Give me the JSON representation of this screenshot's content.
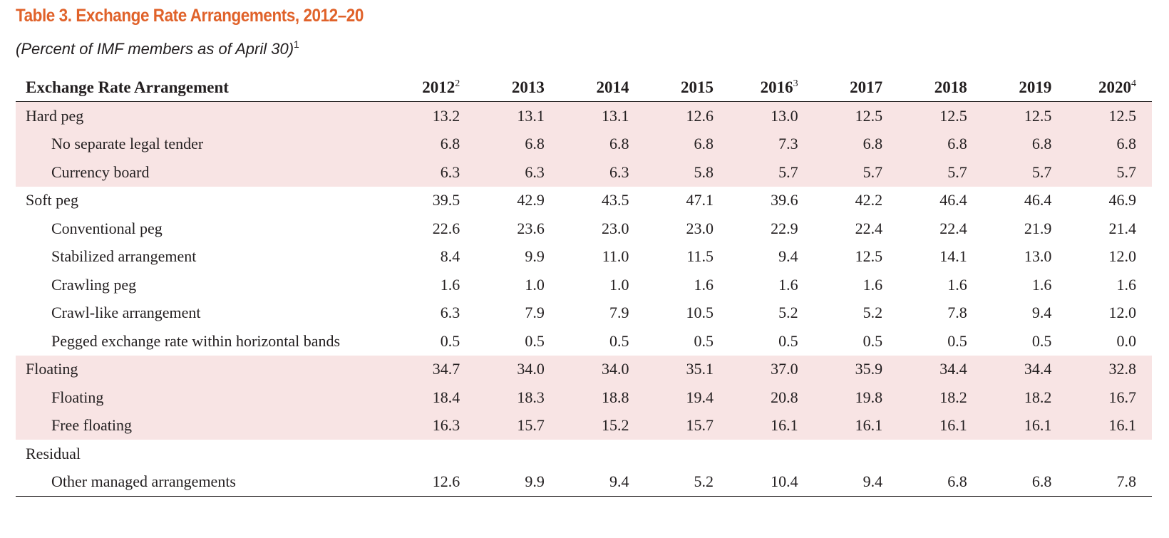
{
  "title": "Table 3.  Exchange Rate Arrangements, 2012–20",
  "subtitle": {
    "text": "(Percent of IMF members as of April 30)",
    "footnote": "1"
  },
  "header": {
    "label": "Exchange Rate Arrangement",
    "years": [
      {
        "year": "2012",
        "note": "2"
      },
      {
        "year": "2013",
        "note": ""
      },
      {
        "year": "2014",
        "note": ""
      },
      {
        "year": "2015",
        "note": ""
      },
      {
        "year": "2016",
        "note": "3"
      },
      {
        "year": "2017",
        "note": ""
      },
      {
        "year": "2018",
        "note": ""
      },
      {
        "year": "2019",
        "note": ""
      },
      {
        "year": "2020",
        "note": "4"
      }
    ]
  },
  "rows": [
    {
      "label": "Hard peg",
      "indent": false,
      "shaded": true,
      "values": [
        "13.2",
        "13.1",
        "13.1",
        "12.6",
        "13.0",
        "12.5",
        "12.5",
        "12.5",
        "12.5"
      ]
    },
    {
      "label": "No separate legal tender",
      "indent": true,
      "shaded": true,
      "values": [
        "6.8",
        "6.8",
        "6.8",
        "6.8",
        "7.3",
        "6.8",
        "6.8",
        "6.8",
        "6.8"
      ]
    },
    {
      "label": "Currency board",
      "indent": true,
      "shaded": true,
      "values": [
        "6.3",
        "6.3",
        "6.3",
        "5.8",
        "5.7",
        "5.7",
        "5.7",
        "5.7",
        "5.7"
      ]
    },
    {
      "label": "Soft peg",
      "indent": false,
      "shaded": false,
      "values": [
        "39.5",
        "42.9",
        "43.5",
        "47.1",
        "39.6",
        "42.2",
        "46.4",
        "46.4",
        "46.9"
      ]
    },
    {
      "label": "Conventional peg",
      "indent": true,
      "shaded": false,
      "values": [
        "22.6",
        "23.6",
        "23.0",
        "23.0",
        "22.9",
        "22.4",
        "22.4",
        "21.9",
        "21.4"
      ]
    },
    {
      "label": "Stabilized arrangement",
      "indent": true,
      "shaded": false,
      "values": [
        "8.4",
        "9.9",
        "11.0",
        "11.5",
        "9.4",
        "12.5",
        "14.1",
        "13.0",
        "12.0"
      ]
    },
    {
      "label": "Crawling peg",
      "indent": true,
      "shaded": false,
      "values": [
        "1.6",
        "1.0",
        "1.0",
        "1.6",
        "1.6",
        "1.6",
        "1.6",
        "1.6",
        "1.6"
      ]
    },
    {
      "label": "Crawl-like arrangement",
      "indent": true,
      "shaded": false,
      "values": [
        "6.3",
        "7.9",
        "7.9",
        "10.5",
        "5.2",
        "5.2",
        "7.8",
        "9.4",
        "12.0"
      ]
    },
    {
      "label": "Pegged exchange rate within horizontal bands",
      "indent": true,
      "shaded": false,
      "values": [
        "0.5",
        "0.5",
        "0.5",
        "0.5",
        "0.5",
        "0.5",
        "0.5",
        "0.5",
        "0.0"
      ]
    },
    {
      "label": "Floating",
      "indent": false,
      "shaded": true,
      "values": [
        "34.7",
        "34.0",
        "34.0",
        "35.1",
        "37.0",
        "35.9",
        "34.4",
        "34.4",
        "32.8"
      ]
    },
    {
      "label": "Floating",
      "indent": true,
      "shaded": true,
      "values": [
        "18.4",
        "18.3",
        "18.8",
        "19.4",
        "20.8",
        "19.8",
        "18.2",
        "18.2",
        "16.7"
      ]
    },
    {
      "label": "Free floating",
      "indent": true,
      "shaded": true,
      "values": [
        "16.3",
        "15.7",
        "15.2",
        "15.7",
        "16.1",
        "16.1",
        "16.1",
        "16.1",
        "16.1"
      ]
    },
    {
      "label": "Residual",
      "indent": false,
      "shaded": false,
      "values": [
        "",
        "",
        "",
        "",
        "",
        "",
        "",
        "",
        ""
      ]
    },
    {
      "label": "Other managed arrangements",
      "indent": true,
      "shaded": false,
      "values": [
        "12.6",
        "9.9",
        "9.4",
        "5.2",
        "10.4",
        "9.4",
        "6.8",
        "6.8",
        "7.8"
      ]
    }
  ],
  "chart_data": {
    "type": "table",
    "title": "Table 3.  Exchange Rate Arrangements, 2012–20",
    "columns": [
      "Exchange Rate Arrangement",
      "2012",
      "2013",
      "2014",
      "2015",
      "2016",
      "2017",
      "2018",
      "2019",
      "2020"
    ],
    "colors": {
      "title": "#e0622a",
      "shading": "#f8e4e4"
    }
  }
}
